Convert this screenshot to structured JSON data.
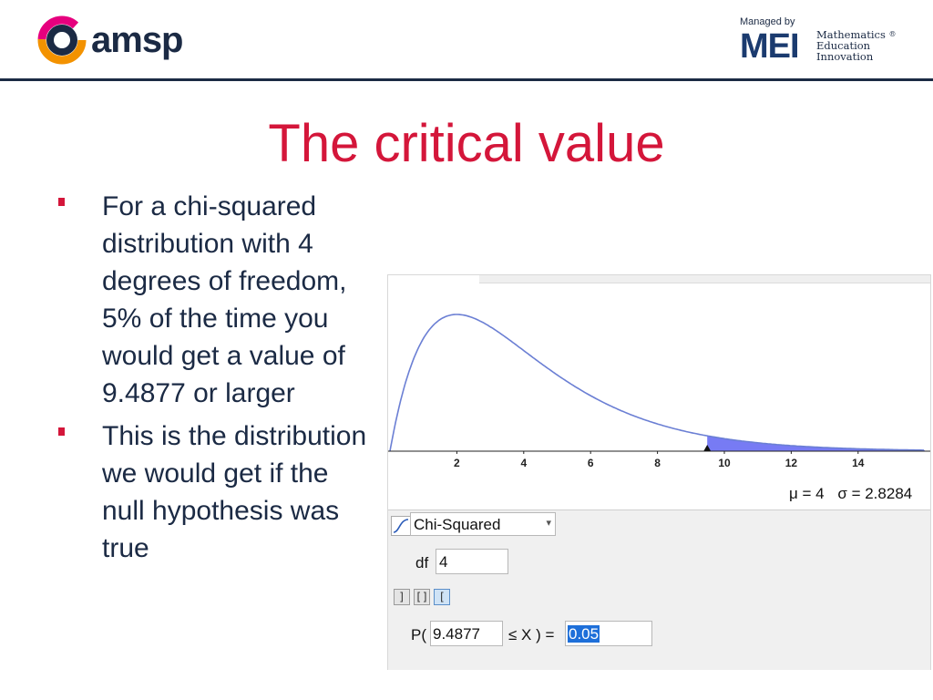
{
  "header": {
    "brand_text": "amsp",
    "managed_by": "Managed by",
    "mei_letters": "MEI",
    "mei_words": [
      "Mathematics",
      "Education",
      "Innovation"
    ],
    "mei_reg": "®"
  },
  "slide": {
    "title": "The critical value",
    "bullets": [
      "For a chi-squared distribution with 4 degrees of freedom, 5% of the time you would get a value of 9.4877 or larger",
      "This is the distribution we would get if the null hypothesis was true"
    ]
  },
  "app": {
    "stats": {
      "mu": "μ = 4",
      "sigma": "σ = 2.8284"
    },
    "distribution": "Chi-Squared",
    "df_label": "df",
    "df_value": "4",
    "interval_buttons": [
      "]",
      "[]",
      "["
    ],
    "prob_label": "P(",
    "prob_lower": "9.4877",
    "prob_op": "≤ X ) =",
    "prob_result": "0.05"
  },
  "chart_data": {
    "type": "area",
    "distribution": "chi-squared",
    "df": 4,
    "x_ticks": [
      2,
      4,
      6,
      8,
      10,
      12,
      14
    ],
    "xlim": [
      0,
      16
    ],
    "critical_value": 9.4877,
    "shaded_region": [
      9.4877,
      16
    ],
    "curve_color": "#6b7fd4",
    "shade_color": "#4a4ff0"
  }
}
